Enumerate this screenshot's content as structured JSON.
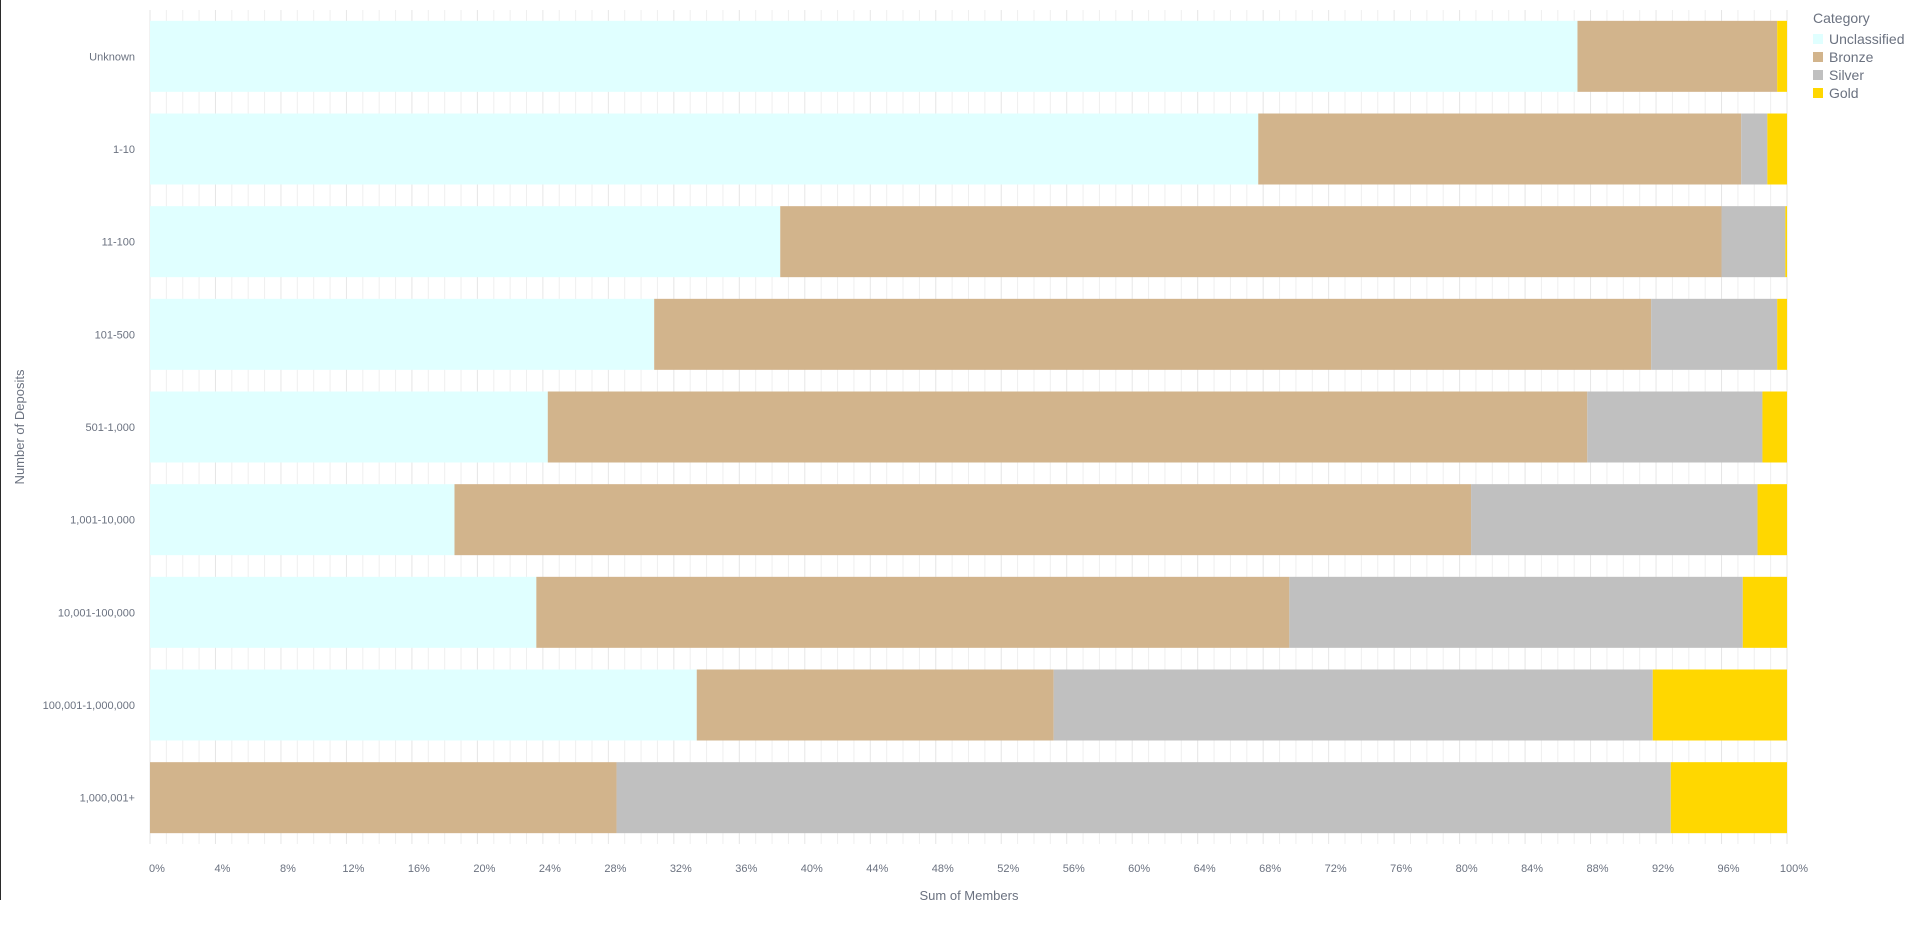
{
  "chart_data": {
    "type": "bar",
    "orientation": "horizontal",
    "stacked": "percent",
    "xlabel": "Sum of Members",
    "ylabel": "Number of Deposits",
    "xlim": [
      0,
      100
    ],
    "x_tick_labels": [
      "0%",
      "4%",
      "8%",
      "12%",
      "16%",
      "20%",
      "24%",
      "28%",
      "32%",
      "36%",
      "40%",
      "44%",
      "48%",
      "52%",
      "56%",
      "60%",
      "64%",
      "68%",
      "72%",
      "76%",
      "80%",
      "84%",
      "88%",
      "92%",
      "96%",
      "100%"
    ],
    "categories": [
      "Unknown",
      "1-10",
      "11-100",
      "101-500",
      "501-1,000",
      "1,001-10,000",
      "10,001-100,000",
      "100,001-1,000,000",
      "1,000,001+"
    ],
    "series": [
      {
        "name": "Unclassified",
        "color": "#E0FFFF",
        "values": [
          87.2,
          67.7,
          38.5,
          30.8,
          24.3,
          18.6,
          23.6,
          33.4,
          0
        ]
      },
      {
        "name": "Bronze",
        "color": "#D2B48C",
        "values": [
          12.2,
          29.5,
          57.5,
          60.9,
          63.5,
          62.1,
          46.0,
          21.8,
          28.5
        ]
      },
      {
        "name": "Silver",
        "color": "#C0C0C0",
        "values": [
          0,
          1.6,
          3.9,
          7.7,
          10.7,
          17.5,
          27.7,
          36.6,
          64.4
        ]
      },
      {
        "name": "Gold",
        "color": "#FFD700",
        "values": [
          0.6,
          1.2,
          0.1,
          0.6,
          1.5,
          1.8,
          2.7,
          8.2,
          7.1
        ]
      }
    ],
    "legend_title": "Category",
    "legend_position": "top-right",
    "grid": true
  }
}
